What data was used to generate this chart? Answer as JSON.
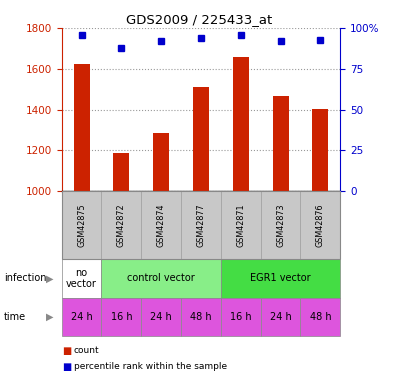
{
  "title": "GDS2009 / 225433_at",
  "samples": [
    "GSM42875",
    "GSM42872",
    "GSM42874",
    "GSM42877",
    "GSM42871",
    "GSM42873",
    "GSM42876"
  ],
  "counts": [
    1625,
    1190,
    1285,
    1510,
    1660,
    1465,
    1405
  ],
  "percentiles": [
    96,
    88,
    92,
    94,
    96,
    92,
    93
  ],
  "ylim_left": [
    1000,
    1800
  ],
  "ylim_right": [
    0,
    100
  ],
  "yticks_left": [
    1000,
    1200,
    1400,
    1600,
    1800
  ],
  "yticks_right": [
    0,
    25,
    50,
    75,
    100
  ],
  "time_labels": [
    "24 h",
    "16 h",
    "24 h",
    "48 h",
    "16 h",
    "24 h",
    "48 h"
  ],
  "time_color": "#dd55dd",
  "bar_color": "#cc2200",
  "percentile_color": "#0000cc",
  "sample_bg_color": "#c8c8c8",
  "left_axis_color": "#cc2200",
  "right_axis_color": "#0000cc",
  "infection_groups": [
    {
      "label": "no\nvector",
      "start": 0,
      "end": 1,
      "color": "#ffffff"
    },
    {
      "label": "control vector",
      "start": 1,
      "end": 4,
      "color": "#88ee88"
    },
    {
      "label": "EGR1 vector",
      "start": 4,
      "end": 7,
      "color": "#44dd44"
    }
  ]
}
